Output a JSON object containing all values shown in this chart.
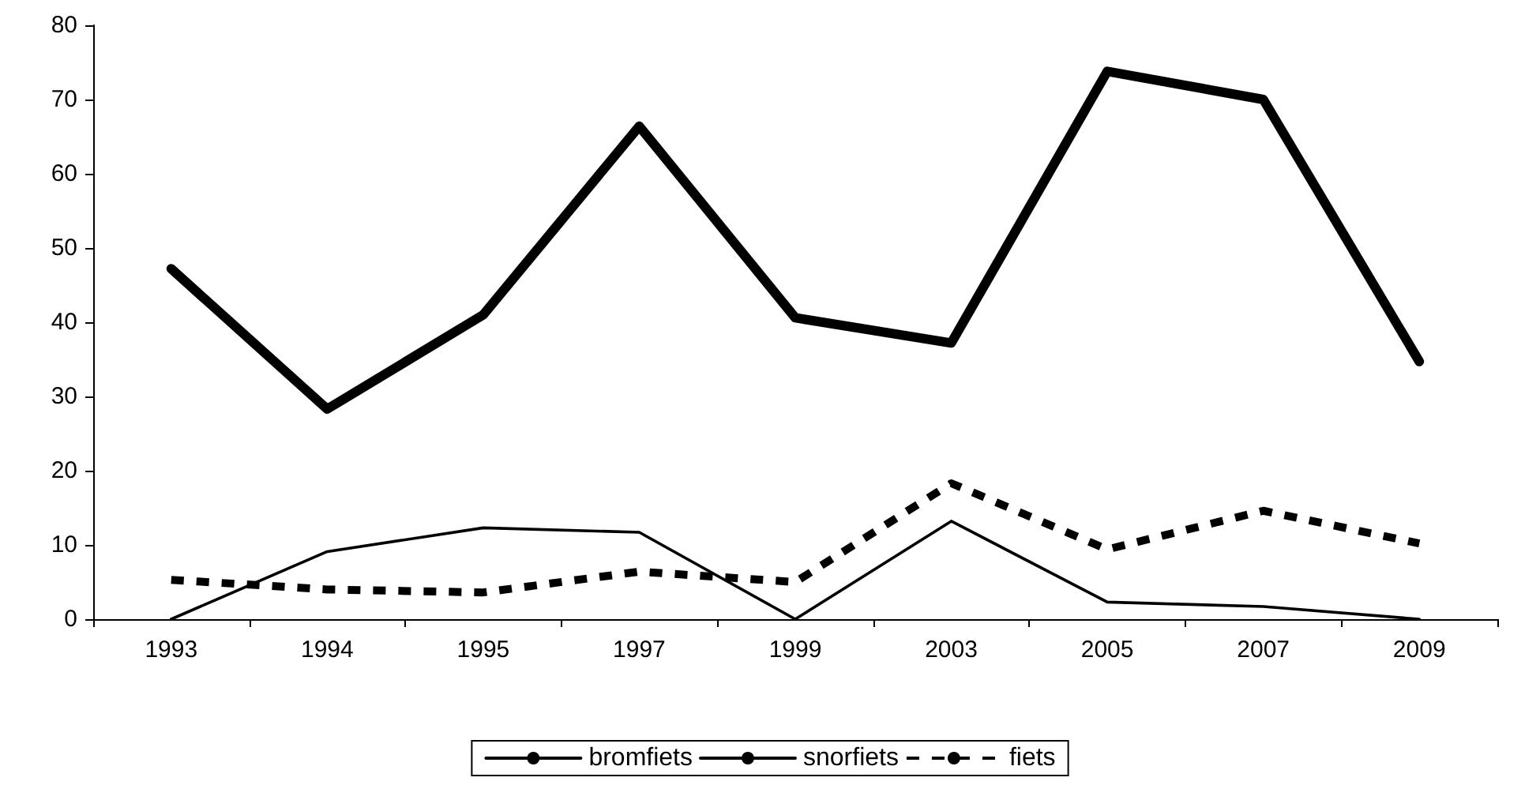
{
  "chart_data": {
    "type": "line",
    "categories": [
      "1993",
      "1994",
      "1995",
      "1997",
      "1999",
      "2003",
      "2005",
      "2007",
      "2009"
    ],
    "series": [
      {
        "name": "bromfiets",
        "color": "#000000",
        "line_style": "solid",
        "values": [
          47.2,
          28.3,
          41,
          66.4,
          40.6,
          37.2,
          73.8,
          70,
          34.7
        ]
      },
      {
        "name": "snorfiets",
        "color": "#000000",
        "line_style": "solid",
        "values": [
          0,
          9.1,
          12.3,
          11.7,
          0,
          13.2,
          2.3,
          1.7,
          0
        ]
      },
      {
        "name": "fiets",
        "color": "#000000",
        "line_style": "dashed",
        "values": [
          5.3,
          4,
          3.6,
          6.4,
          5,
          18.3,
          9.4,
          14.6,
          10.2
        ]
      }
    ],
    "ylim": [
      0,
      80
    ],
    "yticks": [
      0,
      10,
      20,
      30,
      40,
      50,
      60,
      70,
      80
    ],
    "grid": false,
    "legend": "bottom",
    "marker": "none"
  }
}
